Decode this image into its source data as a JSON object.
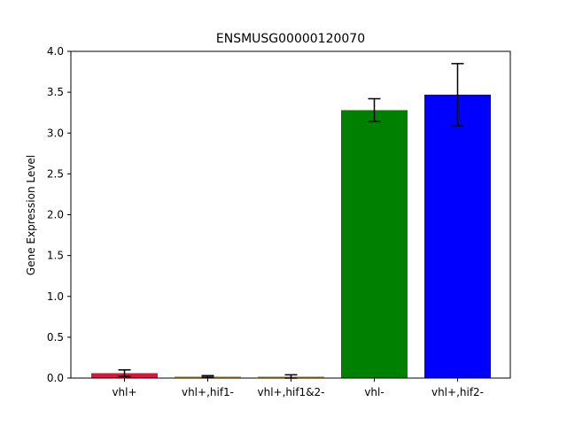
{
  "chart_data": {
    "type": "bar",
    "title": "ENSMUSG00000120070",
    "xlabel": "",
    "ylabel": "Gene Expression Level",
    "categories": [
      "vhl+",
      "vhl+,hif1-",
      "vhl+,hif1&2-",
      "vhl-",
      "vhl+,hif2-"
    ],
    "values": [
      0.06,
      0.02,
      0.02,
      3.28,
      3.47
    ],
    "errors": [
      0.04,
      0.01,
      0.02,
      0.14,
      0.38
    ],
    "colors": [
      "#dc143c",
      "#daa520",
      "#daa520",
      "#008000",
      "#0000ff"
    ],
    "ylim": [
      0,
      4.0
    ],
    "yticks": [
      "0.0",
      "0.5",
      "1.0",
      "1.5",
      "2.0",
      "2.5",
      "3.0",
      "3.5",
      "4.0"
    ],
    "grid": false,
    "legend": "none"
  }
}
